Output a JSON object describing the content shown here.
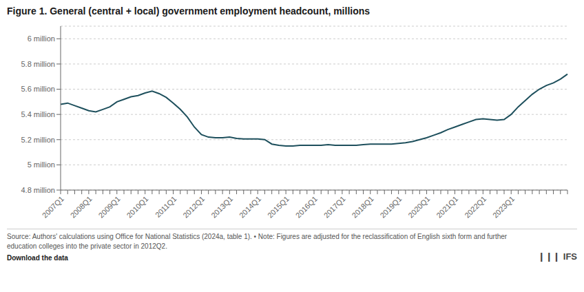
{
  "chart_data": {
    "type": "line",
    "title": "Figure 1. General (central + local) government employment headcount, millions",
    "categories": [
      "2007Q1",
      null,
      null,
      null,
      "2008Q1",
      null,
      null,
      null,
      "2009Q1",
      null,
      null,
      null,
      "2010Q1",
      null,
      null,
      null,
      "2011Q1",
      null,
      null,
      null,
      "2012Q1",
      null,
      null,
      null,
      "2013Q1",
      null,
      null,
      null,
      "2014Q1",
      null,
      null,
      null,
      "2015Q1",
      null,
      null,
      null,
      "2016Q1",
      null,
      null,
      null,
      "2017Q1",
      null,
      null,
      null,
      "2018Q1",
      null,
      null,
      null,
      "2019Q1",
      null,
      null,
      null,
      "2020Q1",
      null,
      null,
      null,
      "2021Q1",
      null,
      null,
      null,
      "2022Q1",
      null,
      null,
      null,
      "2023Q1",
      null,
      null,
      null,
      null,
      null,
      null,
      null,
      null
    ],
    "values": [
      5.48,
      5.49,
      5.47,
      5.45,
      5.43,
      5.42,
      5.44,
      5.46,
      5.5,
      5.52,
      5.54,
      5.55,
      5.57,
      5.585,
      5.565,
      5.535,
      5.49,
      5.44,
      5.38,
      5.3,
      5.24,
      5.22,
      5.215,
      5.215,
      5.22,
      5.21,
      5.205,
      5.205,
      5.205,
      5.2,
      5.165,
      5.155,
      5.15,
      5.15,
      5.155,
      5.155,
      5.155,
      5.155,
      5.16,
      5.155,
      5.155,
      5.155,
      5.155,
      5.16,
      5.165,
      5.165,
      5.165,
      5.165,
      5.17,
      5.175,
      5.185,
      5.2,
      5.215,
      5.235,
      5.255,
      5.28,
      5.3,
      5.32,
      5.34,
      5.36,
      5.365,
      5.36,
      5.355,
      5.36,
      5.4,
      5.46,
      5.51,
      5.56,
      5.6,
      5.63,
      5.65,
      5.68,
      5.72
    ],
    "color": "#1d4f5c",
    "ylim": [
      4.8,
      6.1
    ],
    "yticks": [
      {
        "value": 4.8,
        "label": "4.8 million"
      },
      {
        "value": 5.0,
        "label": "5 million"
      },
      {
        "value": 5.2,
        "label": "5.2 million"
      },
      {
        "value": 5.4,
        "label": "5.4 million"
      },
      {
        "value": 5.6,
        "label": "5.6 million"
      },
      {
        "value": 5.8,
        "label": "5.8 million"
      },
      {
        "value": 6.0,
        "label": "6 million"
      }
    ],
    "grid": true,
    "annotations": [
      "Source: Authors' calculations using Office for National Statistics (2024a, table 1). • Note: Figures are adjusted for the reclassification of English sixth form and further\neducation colleges into the private sector in 2012Q2.",
      "Download the data",
      "❙❙❙",
      "IFS"
    ]
  }
}
